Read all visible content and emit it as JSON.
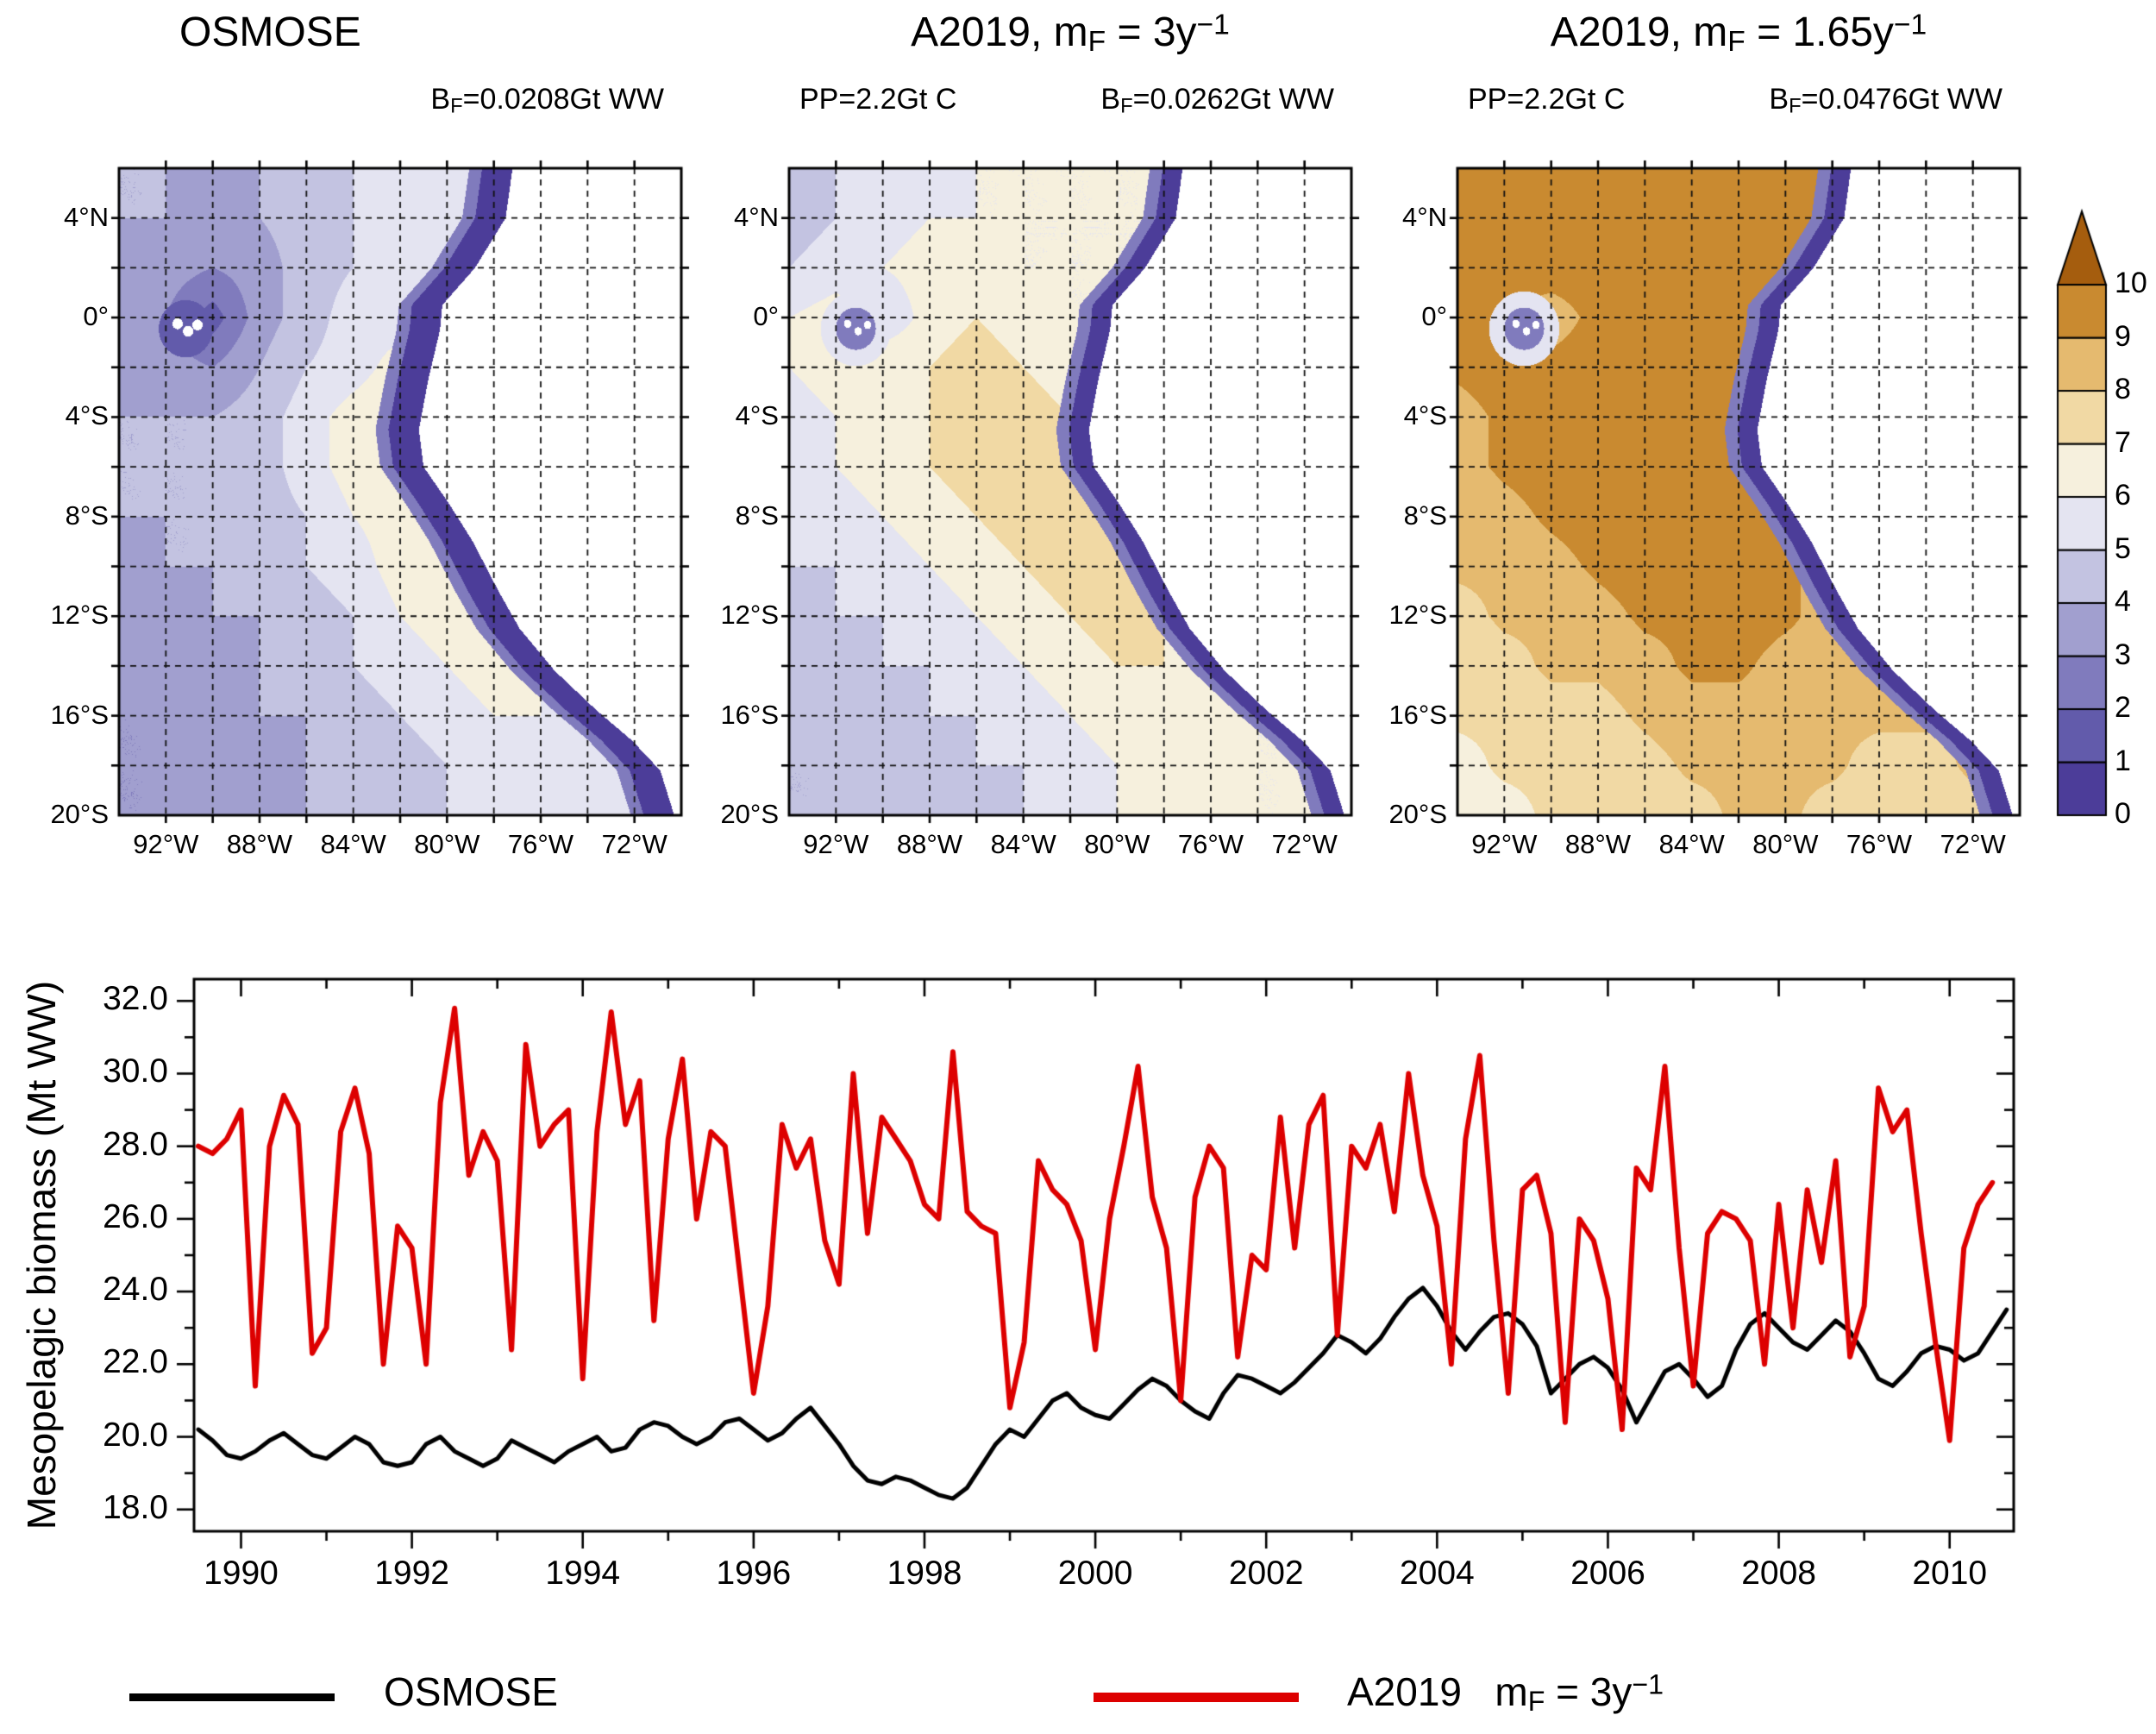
{
  "figure": {
    "background": "#ffffff"
  },
  "colors": {
    "levels": [
      "#4c3d99",
      "#625bab",
      "#807bbd",
      "#a19fcf",
      "#c3c3e1",
      "#e4e4f1",
      "#f6f0dd",
      "#f1d9a4",
      "#e5ba6f",
      "#c98a30",
      "#a55d0e"
    ],
    "land": "#ffffff",
    "frame": "#000000"
  },
  "colorbar": {
    "tick_labels": [
      "0",
      "1",
      "2",
      "3",
      "4",
      "5",
      "6",
      "7",
      "8",
      "9",
      "10"
    ]
  },
  "maps": {
    "lat_ticks": [
      {
        "label": "4°N",
        "lat": 4
      },
      {
        "label": "0°",
        "lat": 0
      },
      {
        "label": "4°S",
        "lat": -4
      },
      {
        "label": "8°S",
        "lat": -8
      },
      {
        "label": "12°S",
        "lat": -12
      },
      {
        "label": "16°S",
        "lat": -16
      },
      {
        "label": "20°S",
        "lat": -20
      }
    ],
    "lon_ticks": [
      {
        "label": "92°W",
        "lon": 92
      },
      {
        "label": "88°W",
        "lon": 88
      },
      {
        "label": "84°W",
        "lon": 84
      },
      {
        "label": "80°W",
        "lon": 80
      },
      {
        "label": "76°W",
        "lon": 76
      },
      {
        "label": "72°W",
        "lon": 72
      }
    ],
    "coastline": [
      [
        77.2,
        6
      ],
      [
        77.5,
        4
      ],
      [
        78.8,
        2
      ],
      [
        80.2,
        0.5
      ],
      [
        80.3,
        -0.5
      ],
      [
        80.8,
        -2.5
      ],
      [
        81.2,
        -4.5
      ],
      [
        81.0,
        -6
      ],
      [
        79.9,
        -7.5
      ],
      [
        78.9,
        -9
      ],
      [
        77.8,
        -11
      ],
      [
        76.9,
        -12.5
      ],
      [
        75.4,
        -14.2
      ],
      [
        73.6,
        -15.8
      ],
      [
        72.1,
        -17
      ],
      [
        70.9,
        -18.2
      ],
      [
        70.3,
        -20
      ]
    ],
    "islands": [
      [
        91.5,
        -0.25
      ],
      [
        91.05,
        -0.55
      ],
      [
        90.65,
        -0.3
      ]
    ]
  },
  "chart_data": [
    {
      "type": "heatmap",
      "title_parts": {
        "pre": "OSMOSE"
      },
      "subtitle_right": {
        "pre": "B",
        "sub": "F",
        "post": "=0.0208Gt WW"
      },
      "lon_range": [
        94,
        70
      ],
      "lat_range": [
        6,
        -20
      ],
      "values": [
        [
          4,
          4,
          4,
          4,
          4.5,
          5,
          5.5,
          5.5,
          5.5,
          5.5,
          5.5,
          5.5,
          5.5
        ],
        [
          4,
          4,
          3.5,
          4,
          4.5,
          5,
          5.5,
          5.5,
          5.5,
          5.5,
          5.5,
          5.5,
          5.5
        ],
        [
          4,
          3.5,
          3,
          3.5,
          4.5,
          5,
          5.5,
          5.5,
          5.5,
          5.5,
          5.5,
          5.5,
          5.5
        ],
        [
          4,
          3,
          1.5,
          3.5,
          4.5,
          5.5,
          5.5,
          5.5,
          5.5,
          5.5,
          5.5,
          5.5,
          5.5
        ],
        [
          4,
          3.5,
          3,
          4,
          5,
          5.5,
          6.5,
          6.5,
          5.5,
          5.5,
          5.5,
          5.5,
          5.5
        ],
        [
          4,
          4,
          4,
          4.5,
          5.5,
          6.5,
          7,
          6.5,
          5.5,
          5.5,
          5.5,
          5.5,
          5.5
        ],
        [
          4,
          4,
          4,
          4.5,
          5.5,
          6.5,
          7,
          6.5,
          5.5,
          5.5,
          5.5,
          5.5,
          5.5
        ],
        [
          4,
          4,
          4,
          4.5,
          5,
          6,
          6.5,
          6.5,
          6,
          5.5,
          5.5,
          5.5,
          5.5
        ],
        [
          3.5,
          4,
          4,
          4.5,
          5,
          5.5,
          6.5,
          7,
          6.5,
          5.5,
          5.5,
          5.5,
          5.5
        ],
        [
          3.5,
          3.5,
          4,
          4,
          4.5,
          5,
          6,
          6.5,
          6.5,
          5.5,
          5.5,
          5.5,
          5.5
        ],
        [
          3,
          3.5,
          3.5,
          4,
          4.5,
          5,
          5.5,
          6,
          6.5,
          6,
          5.5,
          5.5,
          5.5
        ],
        [
          3,
          3,
          3.5,
          4,
          4,
          4.5,
          5,
          5.5,
          6,
          6,
          5.5,
          5.5,
          5.5
        ],
        [
          3,
          3,
          3.5,
          3.5,
          4,
          4.5,
          4.5,
          5,
          5.5,
          5.5,
          5.5,
          5.5,
          5.5
        ],
        [
          3,
          3,
          3,
          3.5,
          4,
          4,
          4.5,
          5,
          5.5,
          5.5,
          5.5,
          5.5,
          5.5
        ]
      ]
    },
    {
      "type": "heatmap",
      "title_parts": {
        "pre": "A2019, m",
        "sub": "F",
        "mid": " = 3y",
        "sup": "−1"
      },
      "subtitle_left": "PP=2.2Gt C",
      "subtitle_right": {
        "pre": "B",
        "sub": "F",
        "post": "=0.0262Gt WW"
      },
      "lon_range": [
        94,
        70
      ],
      "lat_range": [
        6,
        -20
      ],
      "values": [
        [
          5,
          5,
          5.5,
          5.5,
          6,
          6,
          6,
          6,
          6,
          6,
          6,
          6,
          6
        ],
        [
          4.5,
          5,
          5.5,
          6,
          6,
          6,
          6,
          6,
          6,
          6,
          6,
          6,
          6
        ],
        [
          5,
          5.5,
          6,
          6.5,
          6.5,
          6,
          6,
          6,
          6,
          6,
          6,
          6,
          6
        ],
        [
          6,
          6.5,
          5,
          6.5,
          7,
          6.5,
          6,
          6,
          6,
          6,
          6,
          6,
          6
        ],
        [
          6,
          6.5,
          7,
          7,
          7.5,
          7,
          6.5,
          6,
          6,
          6,
          6,
          6,
          6
        ],
        [
          5.5,
          6,
          6.5,
          7,
          7.5,
          7.5,
          7,
          6.5,
          6,
          6,
          6,
          6,
          6
        ],
        [
          5.5,
          6,
          6.5,
          7,
          7.5,
          8,
          7.5,
          7,
          6,
          6,
          6,
          6,
          6
        ],
        [
          5,
          5.5,
          6,
          6.5,
          7,
          7.5,
          8,
          7.5,
          6.5,
          6,
          6,
          6,
          6
        ],
        [
          5,
          5,
          5.5,
          6,
          6.5,
          7,
          7.5,
          8,
          7,
          6,
          6,
          6,
          6
        ],
        [
          4.5,
          5,
          5,
          5.5,
          6,
          6.5,
          7,
          7.5,
          7,
          6.5,
          6,
          6,
          6
        ],
        [
          4.5,
          4.5,
          5,
          5,
          5.5,
          6,
          6.5,
          7,
          7,
          6.5,
          6,
          6,
          6
        ],
        [
          4,
          4.5,
          4.5,
          5,
          5,
          5.5,
          6,
          6.5,
          7,
          6.5,
          6,
          6,
          6
        ],
        [
          4,
          4,
          4.5,
          4.5,
          5,
          5,
          5.5,
          6,
          6.5,
          6.5,
          6,
          6,
          6
        ],
        [
          4,
          4,
          4,
          4.5,
          4.5,
          5,
          5.5,
          6,
          6,
          6,
          6,
          6,
          6
        ]
      ]
    },
    {
      "type": "heatmap",
      "title_parts": {
        "pre": "A2019, m",
        "sub": "F",
        "mid": " = 1.65y",
        "sup": "−1"
      },
      "subtitle_left": "PP=2.2Gt C",
      "subtitle_right": {
        "pre": "B",
        "sub": "F",
        "post": "=0.0476Gt WW"
      },
      "lon_range": [
        94,
        70
      ],
      "lat_range": [
        6,
        -20
      ],
      "values": [
        [
          9.2,
          9.5,
          9.5,
          9.5,
          9.8,
          9.8,
          9.8,
          9.8,
          9.5,
          9.2,
          9.2,
          9.2,
          9.2
        ],
        [
          9.2,
          9.5,
          9.8,
          9.8,
          9.8,
          9.8,
          9.8,
          9.8,
          9.5,
          9.2,
          9.2,
          9.2,
          9.2
        ],
        [
          9.2,
          9.5,
          9.8,
          9.8,
          9.8,
          9.8,
          9.8,
          9.5,
          9.2,
          9.2,
          9.2,
          9.2,
          9.2
        ],
        [
          9.2,
          9.2,
          8.2,
          9.5,
          9.8,
          9.8,
          9.5,
          9.5,
          9.2,
          9.2,
          9.2,
          9.2,
          9.2
        ],
        [
          9.2,
          9.5,
          9.5,
          9.8,
          9.8,
          9.8,
          9.5,
          9.2,
          9.2,
          9.2,
          9.2,
          9.2,
          9.2
        ],
        [
          8.6,
          9.2,
          9.5,
          9.8,
          9.8,
          9.8,
          9.5,
          9.2,
          9.2,
          9.2,
          9.2,
          9.2,
          9.2
        ],
        [
          8.6,
          9.2,
          9.5,
          9.5,
          9.8,
          9.8,
          9.5,
          9.2,
          8.6,
          9.2,
          9.2,
          9.2,
          9.2
        ],
        [
          8.2,
          8.6,
          9.2,
          9.5,
          9.5,
          9.8,
          9.5,
          9.2,
          8.6,
          8.6,
          9.2,
          9.2,
          9.2
        ],
        [
          8.2,
          8.2,
          8.6,
          9.2,
          9.5,
          9.5,
          9.5,
          9.2,
          8.6,
          8.6,
          8.6,
          9.2,
          9.2
        ],
        [
          7.6,
          8.2,
          8.2,
          8.6,
          9.2,
          9.2,
          9.5,
          9.2,
          8.6,
          8.2,
          8.6,
          8.6,
          8.6
        ],
        [
          7.2,
          7.6,
          8.2,
          8.2,
          8.6,
          9.2,
          9.2,
          8.6,
          8.6,
          8.2,
          8.2,
          8.6,
          8.6
        ],
        [
          7.2,
          7.2,
          7.6,
          7.6,
          8.2,
          8.6,
          8.6,
          8.6,
          8.2,
          8.2,
          8.2,
          8.2,
          8.2
        ],
        [
          6.6,
          7.2,
          7.2,
          7.6,
          7.6,
          8.2,
          8.2,
          8.2,
          8.2,
          7.6,
          7.6,
          8.2,
          8.2
        ],
        [
          6.6,
          6.6,
          7.2,
          7.2,
          7.6,
          7.6,
          8.2,
          8.2,
          7.6,
          7.6,
          7.6,
          7.6,
          7.6
        ]
      ]
    },
    {
      "type": "line",
      "ylabel": "Mesopelagic biomass (Mt WW)",
      "xlim": [
        1989.45,
        2010.75
      ],
      "ylim": [
        17.4,
        32.6
      ],
      "xticks": [
        1990,
        1992,
        1994,
        1996,
        1998,
        2000,
        2002,
        2004,
        2006,
        2008,
        2010
      ],
      "yticks": [
        18,
        20,
        22,
        24,
        26,
        28,
        30,
        32
      ],
      "ytick_labels": [
        "18.0",
        "20.0",
        "22.0",
        "24.0",
        "26.0",
        "28.0",
        "30.0",
        "32.0"
      ],
      "series": [
        {
          "name": "OSMOSE",
          "color": "#000000",
          "line_width": 5,
          "x_start": 1989.5,
          "x_step": 0.166667,
          "values": [
            20.2,
            19.9,
            19.5,
            19.4,
            19.6,
            19.9,
            20.1,
            19.8,
            19.5,
            19.4,
            19.7,
            20.0,
            19.8,
            19.3,
            19.2,
            19.3,
            19.8,
            20.0,
            19.6,
            19.4,
            19.2,
            19.4,
            19.9,
            19.7,
            19.5,
            19.3,
            19.6,
            19.8,
            20.0,
            19.6,
            19.7,
            20.2,
            20.4,
            20.3,
            20.0,
            19.8,
            20.0,
            20.4,
            20.5,
            20.2,
            19.9,
            20.1,
            20.5,
            20.8,
            20.3,
            19.8,
            19.2,
            18.8,
            18.7,
            18.9,
            18.8,
            18.6,
            18.4,
            18.3,
            18.6,
            19.2,
            19.8,
            20.2,
            20.0,
            20.5,
            21.0,
            21.2,
            20.8,
            20.6,
            20.5,
            20.9,
            21.3,
            21.6,
            21.4,
            21.0,
            20.7,
            20.5,
            21.2,
            21.7,
            21.6,
            21.4,
            21.2,
            21.5,
            21.9,
            22.3,
            22.8,
            22.6,
            22.3,
            22.7,
            23.3,
            23.8,
            24.1,
            23.6,
            22.9,
            22.4,
            22.9,
            23.3,
            23.4,
            23.1,
            22.5,
            21.2,
            21.6,
            22.0,
            22.2,
            21.9,
            21.3,
            20.4,
            21.1,
            21.8,
            22.0,
            21.6,
            21.1,
            21.4,
            22.4,
            23.1,
            23.4,
            23.0,
            22.6,
            22.4,
            22.8,
            23.2,
            22.9,
            22.3,
            21.6,
            21.4,
            21.8,
            22.3,
            22.5,
            22.4,
            22.1,
            22.3,
            22.9,
            23.5
          ]
        },
        {
          "name": "A2019 mF=3y-1",
          "color": "#dd0000",
          "line_width": 6,
          "x_start": 1989.5,
          "x_step": 0.166667,
          "values": [
            28.0,
            27.8,
            28.2,
            29.0,
            21.4,
            28.0,
            29.4,
            28.6,
            22.3,
            23.0,
            28.4,
            29.6,
            27.8,
            22.0,
            25.8,
            25.2,
            22.0,
            29.2,
            31.8,
            27.2,
            28.4,
            27.6,
            22.4,
            30.8,
            28.0,
            28.6,
            29.0,
            21.6,
            28.4,
            31.7,
            28.6,
            29.8,
            23.2,
            28.2,
            30.4,
            26.0,
            28.4,
            28.0,
            24.6,
            21.2,
            23.6,
            28.6,
            27.4,
            28.2,
            25.4,
            24.2,
            30.0,
            25.6,
            28.8,
            28.2,
            27.6,
            26.4,
            26.0,
            30.6,
            26.2,
            25.8,
            25.6,
            20.8,
            22.6,
            27.6,
            26.8,
            26.4,
            25.4,
            22.4,
            26.0,
            28.0,
            30.2,
            26.6,
            25.2,
            21.0,
            26.6,
            28.0,
            27.4,
            22.2,
            25.0,
            24.6,
            28.8,
            25.2,
            28.6,
            29.4,
            22.8,
            28.0,
            27.4,
            28.6,
            26.2,
            30.0,
            27.2,
            25.8,
            22.0,
            28.2,
            30.5,
            25.4,
            21.2,
            26.8,
            27.2,
            25.6,
            20.4,
            26.0,
            25.4,
            23.8,
            20.2,
            27.4,
            26.8,
            30.2,
            25.2,
            21.4,
            25.6,
            26.2,
            26.0,
            25.4,
            22.0,
            26.4,
            23.0,
            26.8,
            24.8,
            27.6,
            22.2,
            23.6,
            29.6,
            28.4,
            29.0,
            25.6,
            22.6,
            19.9,
            25.2,
            26.4,
            27.0
          ]
        }
      ]
    }
  ],
  "legend": {
    "items": [
      {
        "color": "#000000",
        "label_parts": {
          "pre": "OSMOSE"
        }
      },
      {
        "color": "#dd0000",
        "label_parts": {
          "pre": "A2019   m",
          "sub": "F",
          "mid": " = 3y",
          "sup": "−1"
        }
      }
    ]
  }
}
